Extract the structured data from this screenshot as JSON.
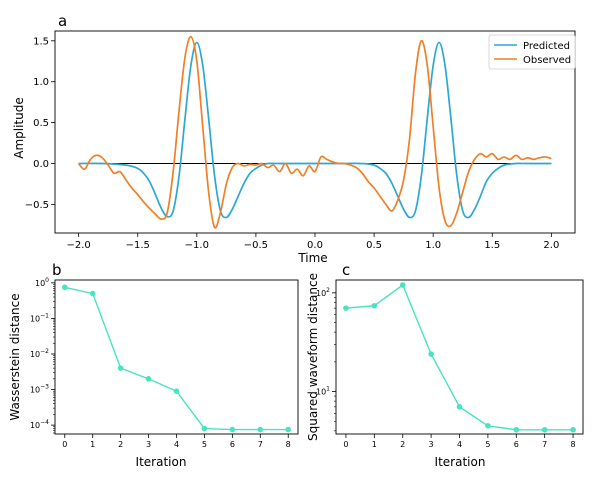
{
  "chart_data": [
    {
      "panel": "a",
      "type": "line",
      "xlabel": "Time",
      "ylabel": "Amplitude",
      "xlim": [
        -2.2,
        2.2
      ],
      "ylim": [
        -0.85,
        1.62
      ],
      "xticks": [
        -2.0,
        -1.5,
        -1.0,
        -0.5,
        0.0,
        0.5,
        1.0,
        1.5,
        2.0
      ],
      "xtick_labels": [
        "−2.0",
        "−1.5",
        "−1.0",
        "−0.5",
        "0.0",
        "0.5",
        "1.0",
        "1.5",
        "2.0"
      ],
      "yticks": [
        -0.5,
        0.0,
        0.5,
        1.0,
        1.5
      ],
      "ytick_labels": [
        "−0.5",
        "0.0",
        "0.5",
        "1.0",
        "1.5"
      ],
      "legend_position": "top-right",
      "baseline": {
        "y": 0,
        "x_range": [
          -2.0,
          2.0
        ],
        "color": "#000000"
      },
      "series": [
        {
          "name": "Predicted",
          "color": "#2aa8d4",
          "x": [
            -2.0,
            -1.8,
            -1.6,
            -1.5,
            -1.45,
            -1.4,
            -1.35,
            -1.3,
            -1.25,
            -1.2,
            -1.15,
            -1.1,
            -1.05,
            -1.0,
            -0.95,
            -0.9,
            -0.85,
            -0.8,
            -0.75,
            -0.7,
            -0.65,
            -0.6,
            -0.55,
            -0.5,
            -0.45,
            -0.4,
            -0.3,
            -0.2,
            0.0,
            0.2,
            0.4,
            0.5,
            0.55,
            0.6,
            0.65,
            0.7,
            0.75,
            0.8,
            0.85,
            0.9,
            0.95,
            1.0,
            1.05,
            1.1,
            1.15,
            1.2,
            1.25,
            1.3,
            1.35,
            1.4,
            1.45,
            1.5,
            1.55,
            1.6,
            1.7,
            1.8,
            2.0
          ],
          "y": [
            0.0,
            0.0,
            -0.02,
            -0.06,
            -0.12,
            -0.22,
            -0.38,
            -0.55,
            -0.65,
            -0.58,
            -0.15,
            0.55,
            1.2,
            1.48,
            1.2,
            0.55,
            -0.15,
            -0.58,
            -0.66,
            -0.56,
            -0.4,
            -0.24,
            -0.12,
            -0.06,
            -0.02,
            0.0,
            0.0,
            0.0,
            0.0,
            0.0,
            0.0,
            -0.02,
            -0.06,
            -0.12,
            -0.24,
            -0.4,
            -0.56,
            -0.66,
            -0.58,
            -0.15,
            0.55,
            1.2,
            1.48,
            1.2,
            0.55,
            -0.15,
            -0.58,
            -0.66,
            -0.56,
            -0.4,
            -0.22,
            -0.12,
            -0.06,
            -0.02,
            0.0,
            0.0,
            0.0
          ]
        },
        {
          "name": "Observed",
          "color": "#f07f27",
          "x": [
            -2.0,
            -1.95,
            -1.9,
            -1.85,
            -1.8,
            -1.75,
            -1.7,
            -1.65,
            -1.6,
            -1.55,
            -1.5,
            -1.45,
            -1.4,
            -1.35,
            -1.3,
            -1.25,
            -1.2,
            -1.15,
            -1.1,
            -1.05,
            -1.0,
            -0.95,
            -0.9,
            -0.85,
            -0.8,
            -0.75,
            -0.7,
            -0.65,
            -0.6,
            -0.55,
            -0.5,
            -0.45,
            -0.4,
            -0.35,
            -0.3,
            -0.25,
            -0.2,
            -0.15,
            -0.1,
            -0.05,
            0.0,
            0.05,
            0.1,
            0.15,
            0.2,
            0.25,
            0.3,
            0.35,
            0.4,
            0.45,
            0.5,
            0.55,
            0.6,
            0.65,
            0.7,
            0.75,
            0.8,
            0.85,
            0.9,
            0.95,
            1.0,
            1.05,
            1.1,
            1.15,
            1.2,
            1.25,
            1.3,
            1.35,
            1.4,
            1.45,
            1.5,
            1.55,
            1.6,
            1.65,
            1.7,
            1.75,
            1.8,
            1.85,
            1.9,
            1.95,
            2.0
          ],
          "y": [
            0.0,
            -0.07,
            0.05,
            0.1,
            0.07,
            -0.02,
            -0.12,
            -0.1,
            -0.2,
            -0.3,
            -0.38,
            -0.47,
            -0.55,
            -0.62,
            -0.68,
            -0.6,
            -0.1,
            0.65,
            1.3,
            1.55,
            1.25,
            0.45,
            -0.35,
            -0.78,
            -0.6,
            -0.25,
            -0.05,
            0.0,
            -0.03,
            -0.01,
            -0.02,
            0.0,
            -0.05,
            -0.02,
            -0.1,
            0.0,
            -0.12,
            -0.07,
            -0.15,
            -0.03,
            -0.1,
            0.08,
            0.05,
            0.02,
            0.0,
            0.0,
            -0.02,
            -0.05,
            -0.12,
            -0.22,
            -0.3,
            -0.4,
            -0.5,
            -0.58,
            -0.45,
            -0.2,
            0.3,
            1.1,
            1.5,
            1.2,
            0.45,
            -0.3,
            -0.7,
            -0.76,
            -0.6,
            -0.35,
            -0.1,
            0.05,
            0.12,
            0.08,
            0.12,
            0.05,
            0.08,
            0.05,
            0.1,
            0.05,
            0.07,
            0.05,
            0.07,
            0.08,
            0.06
          ]
        }
      ]
    },
    {
      "panel": "b",
      "type": "line",
      "xlabel": "Iteration",
      "ylabel": "Wasserstein distance",
      "scale": "log",
      "color": "#49e3c0",
      "xlim": [
        -0.35,
        8.35
      ],
      "ylim_exp": [
        -4.25,
        0.08
      ],
      "xticks": [
        0,
        1,
        2,
        3,
        4,
        5,
        6,
        7,
        8
      ],
      "xtick_labels": [
        "0",
        "1",
        "2",
        "3",
        "4",
        "5",
        "6",
        "7",
        "8"
      ],
      "yticks": [
        0.0001,
        0.001,
        0.01,
        0.1,
        1
      ],
      "ytick_mantissa": [
        "10",
        "10",
        "10",
        "10",
        "10"
      ],
      "ytick_exponents": [
        "−4",
        "−3",
        "−2",
        "−1",
        "0"
      ],
      "x": [
        0,
        1,
        2,
        3,
        4,
        5,
        6,
        7,
        8
      ],
      "y": [
        0.75,
        0.5,
        0.004,
        0.002,
        0.0009,
        8e-05,
        7.5e-05,
        7.5e-05,
        7.5e-05
      ]
    },
    {
      "panel": "c",
      "type": "line",
      "xlabel": "Iteration",
      "ylabel": "Squared waveform distance",
      "scale": "log",
      "color": "#49e3c0",
      "xlim": [
        -0.35,
        8.35
      ],
      "ylim_exp": [
        0.57,
        2.13
      ],
      "xticks": [
        0,
        1,
        2,
        3,
        4,
        5,
        6,
        7,
        8
      ],
      "xtick_labels": [
        "0",
        "1",
        "2",
        "3",
        "4",
        "5",
        "6",
        "7",
        "8"
      ],
      "yticks": [
        10,
        100
      ],
      "ytick_mantissa": [
        "10",
        "10"
      ],
      "ytick_exponents": [
        "1",
        "2"
      ],
      "x": [
        0,
        1,
        2,
        3,
        4,
        5,
        6,
        7,
        8
      ],
      "y": [
        70,
        74,
        120,
        24,
        7,
        4.5,
        4.1,
        4.1,
        4.1
      ]
    }
  ],
  "panel_labels": {
    "a": "a",
    "b": "b",
    "c": "c"
  },
  "legend": {
    "predicted": "Predicted",
    "observed": "Observed"
  }
}
